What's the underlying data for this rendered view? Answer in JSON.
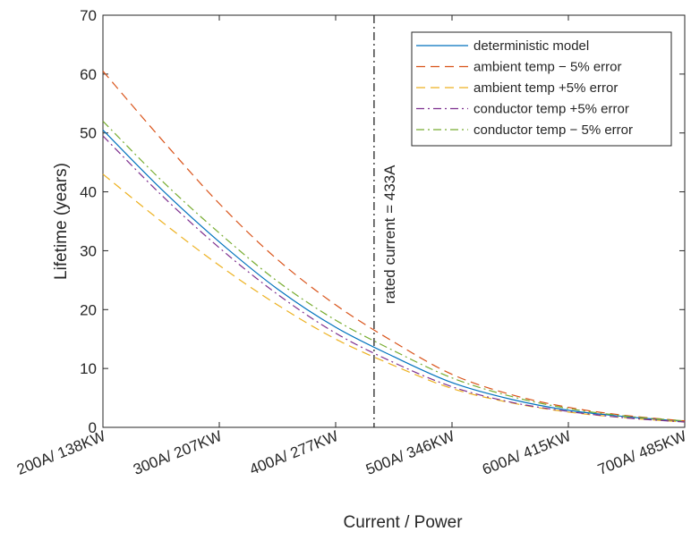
{
  "chart_data": {
    "type": "line",
    "title": "",
    "xlabel": "Current / Power",
    "ylabel": "Lifetime (years)",
    "xlim": [
      200,
      700
    ],
    "ylim": [
      0,
      70
    ],
    "x_ticks": [
      200,
      300,
      400,
      500,
      600,
      700
    ],
    "x_tick_labels": [
      "200A/ 138KW",
      "300A/ 207KW",
      "400A/ 277KW",
      "500A/ 346KW",
      "600A/ 415KW",
      "700A/ 485KW"
    ],
    "y_ticks": [
      0,
      10,
      20,
      30,
      40,
      50,
      60,
      70
    ],
    "y_tick_labels": [
      "0",
      "10",
      "20",
      "30",
      "40",
      "50",
      "60",
      "70"
    ],
    "grid": false,
    "legend_position": "top-right",
    "x": [
      200,
      250,
      300,
      350,
      400,
      450,
      500,
      550,
      600,
      650,
      700
    ],
    "series": [
      {
        "name": "deterministic model",
        "color": "#0072bd",
        "dash": "solid",
        "values": [
          50.5,
          40.5,
          31.5,
          23.5,
          17.0,
          12.0,
          7.6,
          4.8,
          2.9,
          1.8,
          1.0
        ]
      },
      {
        "name": "ambient temp − 5% error",
        "color": "#d95319",
        "dash": "dashed",
        "values": [
          60.5,
          49.0,
          38.0,
          28.5,
          20.8,
          14.5,
          9.0,
          5.6,
          3.4,
          2.0,
          1.1
        ]
      },
      {
        "name": "ambient temp +5% error",
        "color": "#edb120",
        "dash": "dashed",
        "values": [
          43.0,
          35.0,
          27.5,
          20.8,
          15.0,
          10.5,
          6.6,
          4.2,
          2.6,
          1.6,
          0.9
        ]
      },
      {
        "name": "conductor temp +5% error",
        "color": "#7e2f8e",
        "dash": "dashdot",
        "values": [
          49.5,
          39.5,
          30.5,
          22.6,
          16.0,
          11.0,
          6.9,
          4.3,
          2.7,
          1.6,
          0.9
        ]
      },
      {
        "name": "conductor temp − 5% error",
        "color": "#77ac30",
        "dash": "dashdot",
        "values": [
          52.0,
          42.0,
          33.0,
          24.8,
          18.2,
          13.0,
          8.4,
          5.3,
          3.2,
          1.9,
          1.1
        ]
      }
    ],
    "annotations": [
      {
        "type": "vline",
        "x": 433,
        "color": "#262626",
        "dash": "dashdot",
        "text": "rated current = 433A"
      }
    ]
  }
}
